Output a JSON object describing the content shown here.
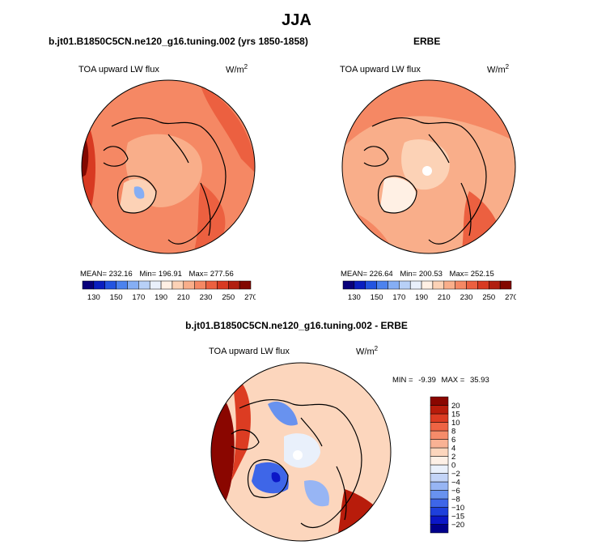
{
  "title": "JJA",
  "colors": {
    "ramp": [
      "#08007a",
      "#0a1ec0",
      "#2354e0",
      "#4c82ee",
      "#85aef4",
      "#b8d0f7",
      "#e9f0fb",
      "#fff0e4",
      "#fcd2b6",
      "#f9ae8a",
      "#f58864",
      "#ec6040",
      "#d83a22",
      "#b11e0f",
      "#820800"
    ],
    "diff_ramp": [
      "#00008c",
      "#0b17c7",
      "#1e40dc",
      "#3e66e8",
      "#6892ef",
      "#97b5f4",
      "#c3d4f7",
      "#e9f0fb",
      "#fdf0e6",
      "#fcd6bd",
      "#f9b294",
      "#f58c6a",
      "#ee6444",
      "#dc3c22",
      "#b81c0b",
      "#8a0600"
    ]
  },
  "panels": {
    "model": {
      "run_title": "b.jt01.B1850C5CN.ne120_g16.tuning.002 (yrs 1850-1858)",
      "variable": "TOA upward LW flux",
      "units_base": "W/m",
      "units_exp": "2",
      "mean_label": "MEAN=",
      "mean_value": "232.16",
      "min_label": "Min=",
      "min_value": "196.91",
      "max_label": "Max=",
      "max_value": "277.56"
    },
    "obs": {
      "run_title": "ERBE",
      "variable": "TOA upward LW flux",
      "units_base": "W/m",
      "units_exp": "2",
      "mean_label": "MEAN=",
      "mean_value": "226.64",
      "min_label": "Min=",
      "min_value": "200.53",
      "max_label": "Max=",
      "max_value": "252.15"
    },
    "diff": {
      "run_title": "b.jt01.B1850C5CN.ne120_g16.tuning.002 - ERBE",
      "variable": "TOA upward LW flux",
      "units_base": "W/m",
      "units_exp": "2",
      "min_label": "MIN =",
      "min_value": "-9.39",
      "max_label": "MAX =",
      "max_value": "35.93"
    }
  },
  "chart_data": [
    {
      "type": "heatmap",
      "projection": "north polar stereographic",
      "title": "b.jt01.B1850C5CN.ne120_g16.tuning.002 (yrs 1850-1858)",
      "variable": "TOA upward LW flux",
      "units": "W/m2",
      "mean": 232.16,
      "min": 196.91,
      "max": 277.56,
      "colorbar_ticks": [
        "130",
        "150",
        "170",
        "190",
        "210",
        "230",
        "250",
        "270"
      ],
      "colorbar_levels": [
        130,
        140,
        150,
        160,
        170,
        180,
        190,
        200,
        210,
        220,
        230,
        240,
        250,
        260,
        270
      ]
    },
    {
      "type": "heatmap",
      "projection": "north polar stereographic",
      "title": "ERBE",
      "variable": "TOA upward LW flux",
      "units": "W/m2",
      "mean": 226.64,
      "min": 200.53,
      "max": 252.15,
      "colorbar_ticks": [
        "130",
        "150",
        "170",
        "190",
        "210",
        "230",
        "250",
        "270"
      ],
      "colorbar_levels": [
        130,
        140,
        150,
        160,
        170,
        180,
        190,
        200,
        210,
        220,
        230,
        240,
        250,
        260,
        270
      ]
    },
    {
      "type": "heatmap",
      "projection": "north polar stereographic",
      "title": "b.jt01.B1850C5CN.ne120_g16.tuning.002 - ERBE",
      "variable": "TOA upward LW flux",
      "units": "W/m2",
      "min": -9.39,
      "max": 35.93,
      "colorbar_ticks": [
        "20",
        "15",
        "10",
        "8",
        "6",
        "4",
        "2",
        "0",
        "−2",
        "−4",
        "−6",
        "−8",
        "−10",
        "−15",
        "−20"
      ],
      "colorbar_levels": [
        -20,
        -15,
        -10,
        -8,
        -6,
        -4,
        -2,
        0,
        2,
        4,
        6,
        8,
        10,
        15,
        20
      ]
    }
  ]
}
